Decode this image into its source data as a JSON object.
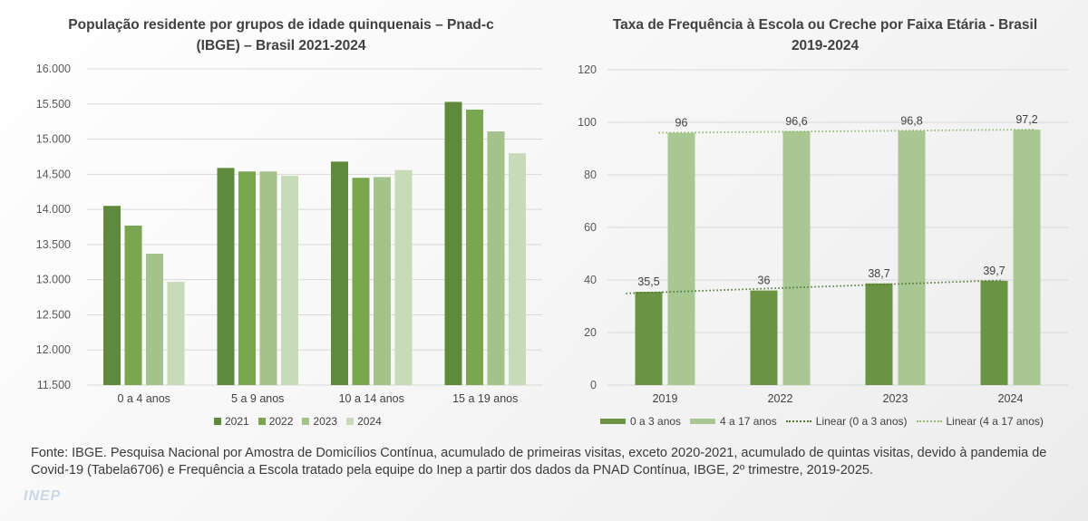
{
  "chart_data": [
    {
      "type": "bar",
      "title_line1": "População residente por grupos de idade quinquenais – Pnad-c",
      "title_line2": "(IBGE) – Brasil 2021-2024",
      "categories": [
        "0 a 4 anos",
        "5 a 9 anos",
        "10 a 14 anos",
        "15 a 19 anos"
      ],
      "series": [
        {
          "name": "2021",
          "color": "#5f8a3c",
          "values": [
            14050,
            14590,
            14680,
            15530
          ]
        },
        {
          "name": "2022",
          "color": "#7aa650",
          "values": [
            13770,
            14540,
            14450,
            15420
          ]
        },
        {
          "name": "2023",
          "color": "#a4c28b",
          "values": [
            13370,
            14540,
            14460,
            15110
          ]
        },
        {
          "name": "2024",
          "color": "#c7dbb8",
          "values": [
            12970,
            14480,
            14560,
            14800
          ]
        }
      ],
      "yticks": [
        "11.500",
        "12.000",
        "12.500",
        "13.000",
        "13.500",
        "14.000",
        "14.500",
        "15.000",
        "15.500",
        "16.000"
      ],
      "ylim": [
        11500,
        16000
      ],
      "grid": true,
      "legend": "bottom"
    },
    {
      "type": "bar",
      "title_line1": "Taxa de Frequência à Escola ou Creche por Faixa Etária - Brasil",
      "title_line2": "2019-2024",
      "categories": [
        "2019",
        "2022",
        "2023",
        "2024"
      ],
      "series": [
        {
          "name": "0 a 3 anos",
          "color": "#6a9444",
          "values": [
            35.5,
            36,
            38.7,
            39.7
          ],
          "labels": [
            "35,5",
            "36",
            "38,7",
            "39,7"
          ]
        },
        {
          "name": "4 a 17 anos",
          "color": "#a8c793",
          "values": [
            96,
            96.6,
            96.8,
            97.2
          ],
          "labels": [
            "96",
            "96,6",
            "96,8",
            "97,2"
          ]
        }
      ],
      "trendlines": [
        {
          "name": "Linear (0 a 3 anos)",
          "color": "#4e7a2e"
        },
        {
          "name": "Linear (4 a 17 anos)",
          "color": "#8dbb6b"
        }
      ],
      "yticks": [
        "0",
        "20",
        "40",
        "60",
        "80",
        "100",
        "120"
      ],
      "ylim": [
        0,
        120
      ],
      "grid": true,
      "legend": "bottom"
    }
  ],
  "source_note": "Fonte: IBGE. Pesquisa Nacional por Amostra de Domicílios Contínua, acumulado de primeiras visitas, exceto 2020-2021, acumulado de quintas visitas, devido à pandemia de Covid-19 (Tabela6706) e Frequência a Escola tratado pela equipe do  Inep a partir dos dados da PNAD Contínua, IBGE, 2º trimestre, 2019-2025.",
  "logo_text": "INEP"
}
